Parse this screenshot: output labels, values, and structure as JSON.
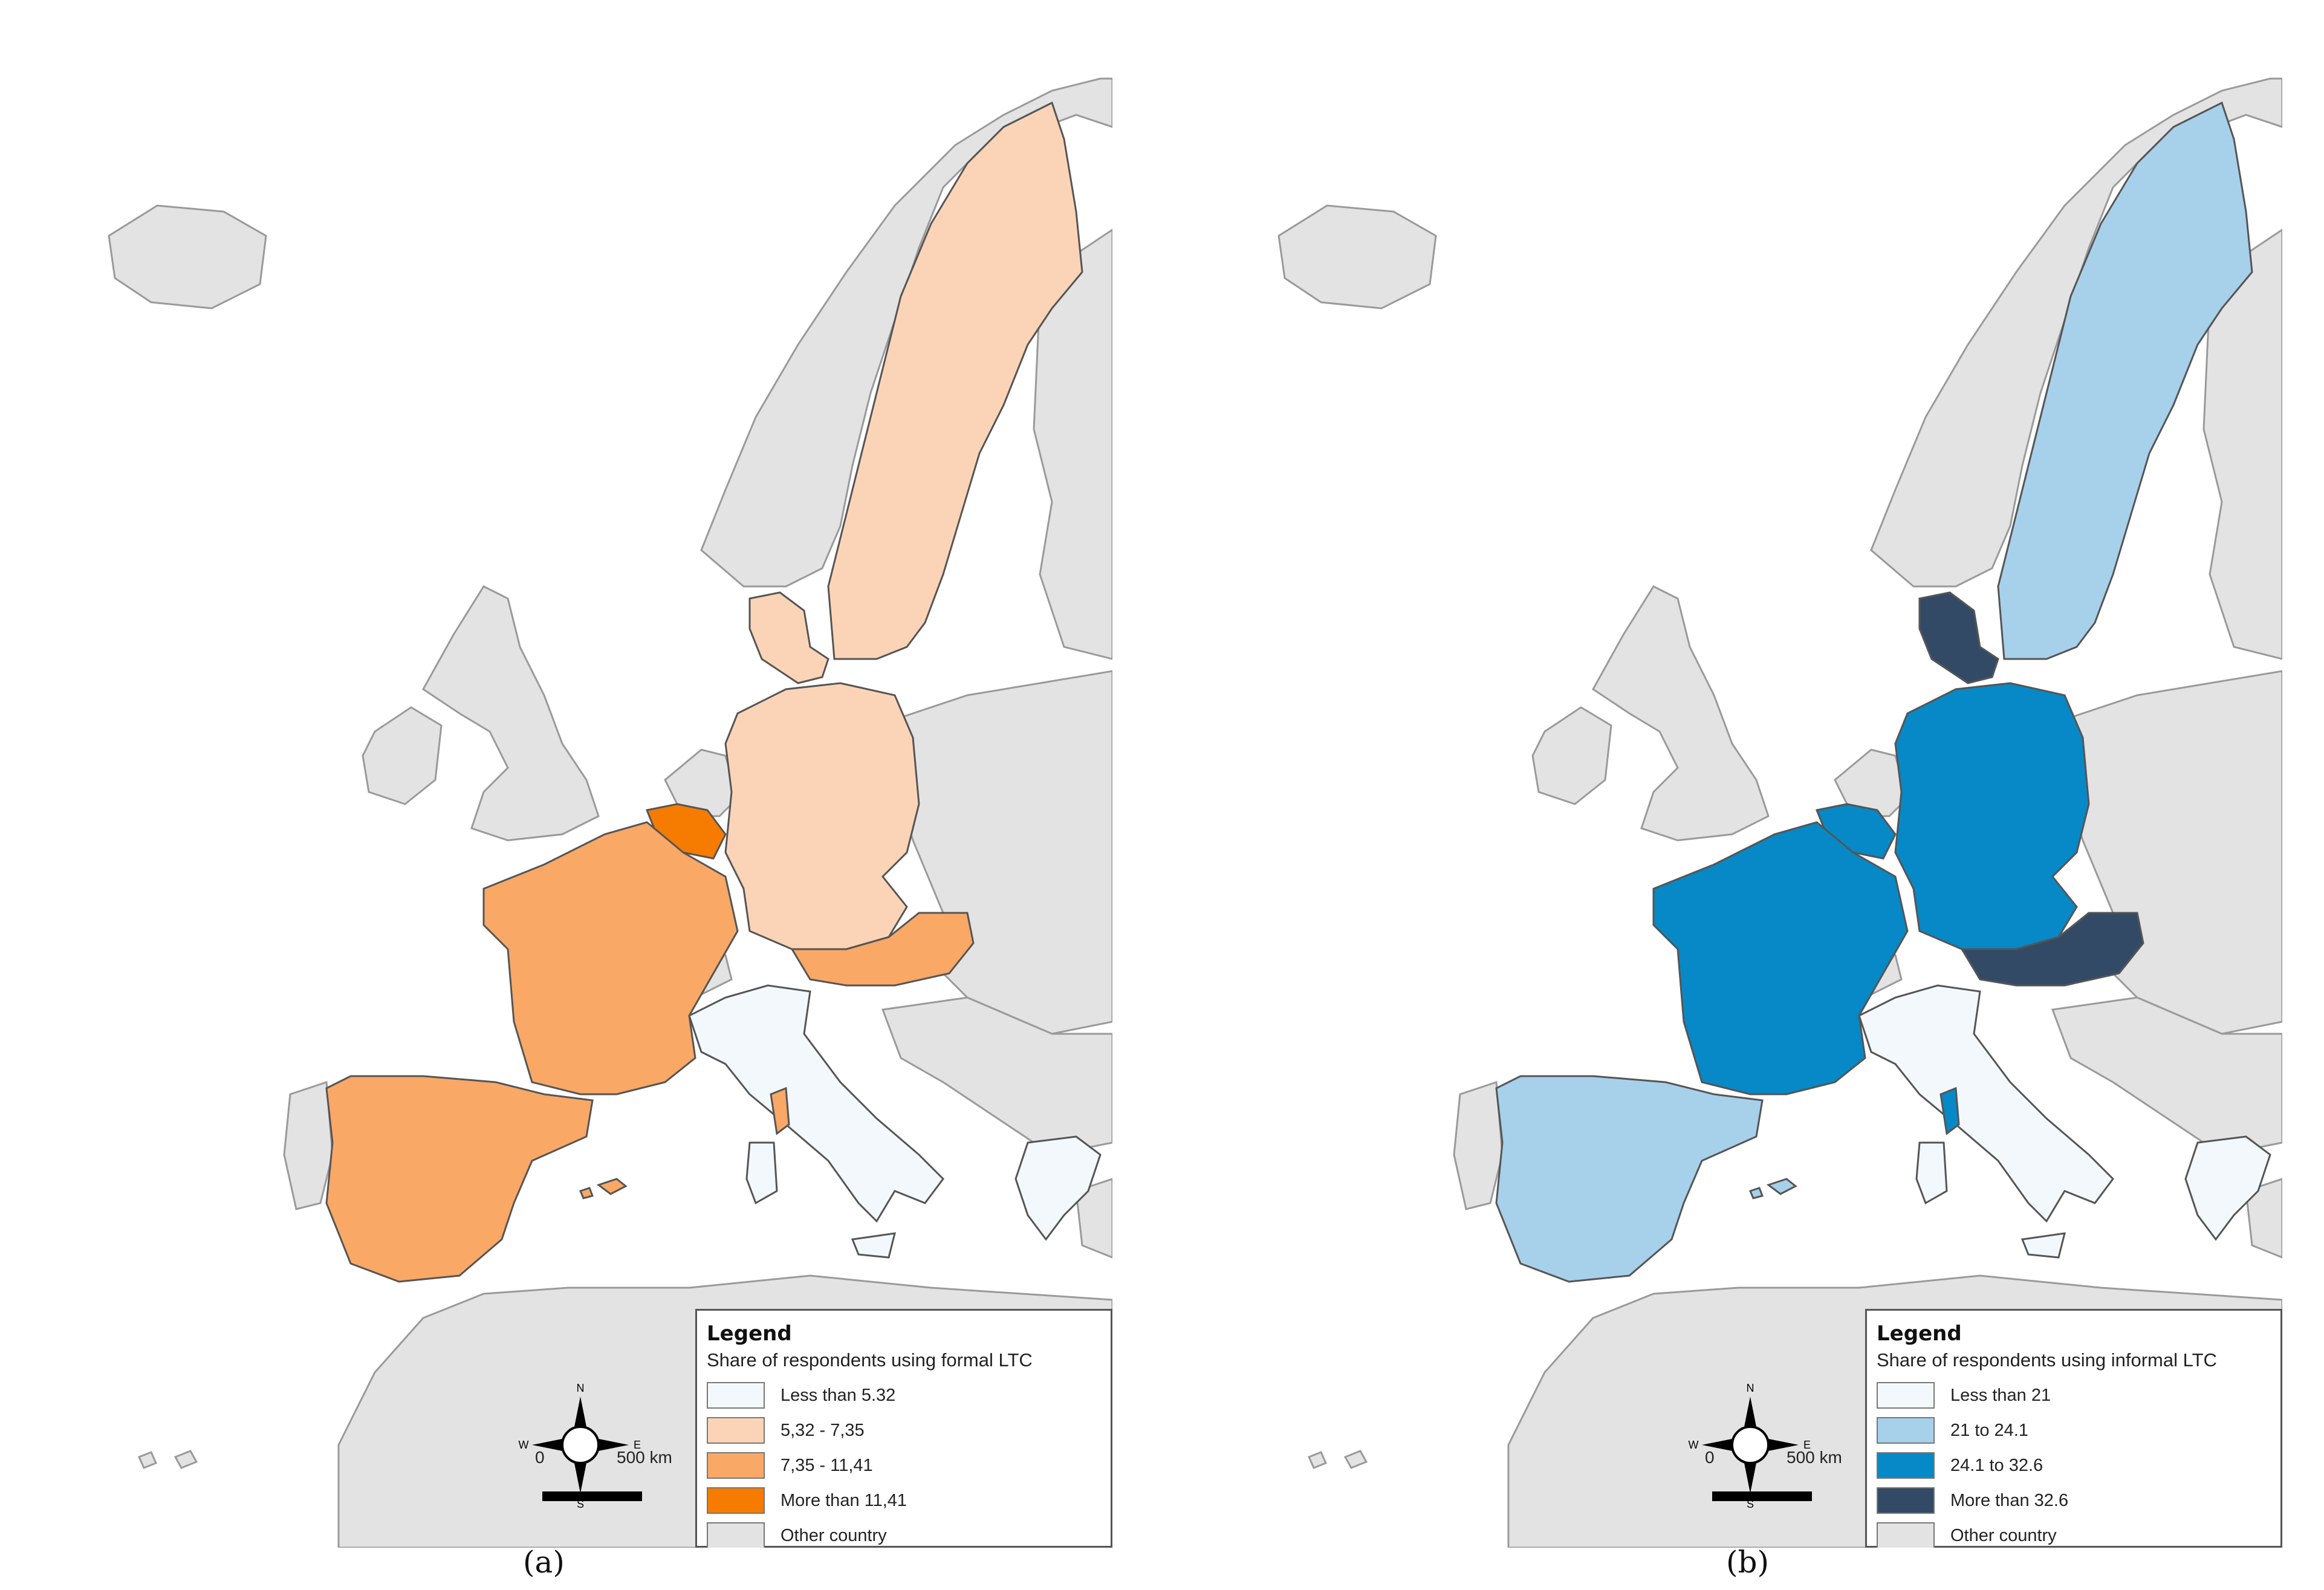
{
  "panels": [
    {
      "id": "a",
      "caption": "(a)",
      "legend": {
        "title": "Legend",
        "subtitle": "Share of respondents using formal LTC",
        "classes": [
          {
            "label": "Less than 5.32",
            "color": "#f3f8fd"
          },
          {
            "label": "5,32 - 7,35",
            "color": "#fbd4b7"
          },
          {
            "label": "7,35 - 11,41",
            "color": "#f9a866"
          },
          {
            "label": "More than 11,41",
            "color": "#f57c00"
          },
          {
            "label": "Other country",
            "color": "#e3e3e3"
          }
        ]
      },
      "scale": {
        "start": "0",
        "distance": "500 km"
      },
      "country_classes": {
        "Sweden": "5,32 - 7,35",
        "Denmark": "5,32 - 7,35",
        "Germany": "5,32 - 7,35",
        "Belgium": "More than 11,41",
        "France": "7,35 - 11,41",
        "Spain": "7,35 - 11,41",
        "Austria": "7,35 - 11,41",
        "Italy": "Less than 5.32",
        "Greece": "Less than 5.32",
        "Switzerland": "Other country"
      }
    },
    {
      "id": "b",
      "caption": "(b)",
      "legend": {
        "title": "Legend",
        "subtitle": "Share of respondents using informal LTC",
        "classes": [
          {
            "label": "Less than 21",
            "color": "#f3f8fd"
          },
          {
            "label": "21 to 24.1",
            "color": "#a7d0ea"
          },
          {
            "label": "24.1 to 32.6",
            "color": "#0689c6"
          },
          {
            "label": "More than 32.6",
            "color": "#324a66"
          },
          {
            "label": "Other country",
            "color": "#e3e3e3"
          }
        ]
      },
      "scale": {
        "start": "0",
        "distance": "500 km"
      },
      "country_classes": {
        "Sweden": "21 to 24.1",
        "Denmark": "More than 32.6",
        "Germany": "24.1 to 32.6",
        "Belgium": "24.1 to 32.6",
        "France": "24.1 to 32.6",
        "Spain": "21 to 24.1",
        "Austria": "More than 32.6",
        "Italy": "Less than 21",
        "Greece": "Less than 21",
        "Switzerland": "Other country"
      }
    }
  ],
  "compass_letters": {
    "n": "N",
    "s": "S",
    "e": "E",
    "w": "W"
  }
}
